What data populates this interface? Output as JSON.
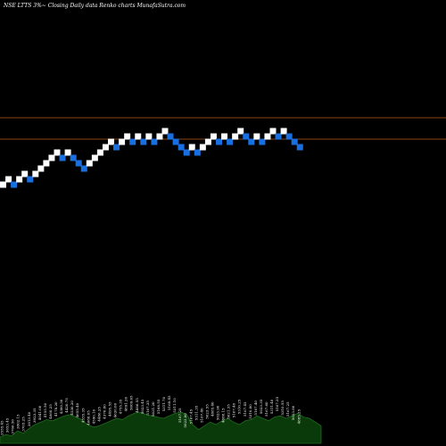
{
  "header": {
    "title": "NSE LTTS 3%~   Closing Daily data  Renko  charts MunafaSutra.com"
  },
  "colors": {
    "background": "#000000",
    "up_brick": "#ffffff",
    "down_brick": "#1a6fe0",
    "resistance_line": "#8b4513",
    "volume_fill": "#0a3a0a",
    "volume_stroke": "#1f6b1f"
  },
  "chart_data": {
    "type": "renko",
    "title": "NSE LTTS 3%~   Closing Daily data  Renko  charts MunafaSutra.com",
    "horizontal_lines": [
      "upper",
      "lower"
    ],
    "bricks": [
      {
        "level": 0,
        "dir": "up"
      },
      {
        "level": 1,
        "dir": "up"
      },
      {
        "level": 0,
        "dir": "down"
      },
      {
        "level": 1,
        "dir": "up"
      },
      {
        "level": 2,
        "dir": "up"
      },
      {
        "level": 1,
        "dir": "down"
      },
      {
        "level": 2,
        "dir": "up"
      },
      {
        "level": 3,
        "dir": "up"
      },
      {
        "level": 4,
        "dir": "up"
      },
      {
        "level": 5,
        "dir": "up"
      },
      {
        "level": 6,
        "dir": "up"
      },
      {
        "level": 5,
        "dir": "down"
      },
      {
        "level": 6,
        "dir": "up"
      },
      {
        "level": 5,
        "dir": "down"
      },
      {
        "level": 4,
        "dir": "down"
      },
      {
        "level": 3,
        "dir": "down"
      },
      {
        "level": 4,
        "dir": "up"
      },
      {
        "level": 5,
        "dir": "up"
      },
      {
        "level": 6,
        "dir": "up"
      },
      {
        "level": 7,
        "dir": "up"
      },
      {
        "level": 8,
        "dir": "up"
      },
      {
        "level": 7,
        "dir": "down"
      },
      {
        "level": 8,
        "dir": "up"
      },
      {
        "level": 9,
        "dir": "up"
      },
      {
        "level": 8,
        "dir": "down"
      },
      {
        "level": 9,
        "dir": "up"
      },
      {
        "level": 8,
        "dir": "down"
      },
      {
        "level": 9,
        "dir": "up"
      },
      {
        "level": 8,
        "dir": "down"
      },
      {
        "level": 9,
        "dir": "up"
      },
      {
        "level": 10,
        "dir": "up"
      },
      {
        "level": 9,
        "dir": "down"
      },
      {
        "level": 8,
        "dir": "down"
      },
      {
        "level": 7,
        "dir": "down"
      },
      {
        "level": 6,
        "dir": "down"
      },
      {
        "level": 7,
        "dir": "up"
      },
      {
        "level": 6,
        "dir": "down"
      },
      {
        "level": 7,
        "dir": "up"
      },
      {
        "level": 8,
        "dir": "up"
      },
      {
        "level": 9,
        "dir": "up"
      },
      {
        "level": 8,
        "dir": "down"
      },
      {
        "level": 9,
        "dir": "up"
      },
      {
        "level": 8,
        "dir": "down"
      },
      {
        "level": 9,
        "dir": "up"
      },
      {
        "level": 10,
        "dir": "up"
      },
      {
        "level": 9,
        "dir": "down"
      },
      {
        "level": 8,
        "dir": "down"
      },
      {
        "level": 9,
        "dir": "up"
      },
      {
        "level": 8,
        "dir": "down"
      },
      {
        "level": 9,
        "dir": "up"
      },
      {
        "level": 10,
        "dir": "up"
      },
      {
        "level": 9,
        "dir": "down"
      },
      {
        "level": 10,
        "dir": "up"
      },
      {
        "level": 9,
        "dir": "down"
      },
      {
        "level": 8,
        "dir": "down"
      },
      {
        "level": 7,
        "dir": "down"
      }
    ],
    "volume_labels": [
      "3555.45",
      "3653.45",
      "3706.50",
      "3802.15",
      "3705.25",
      "3813.40",
      "3923.35",
      "4041.00",
      "4155.50",
      "4060.25",
      "4178.20",
      "4300.30",
      "4420.75",
      "4530.20",
      "4655.40",
      "4555.35",
      "4688.05",
      "4590.10",
      "4486.25",
      "4370.80",
      "4495.55",
      "4620.00",
      "4755.35",
      "4891.20",
      "5009.65",
      "4886.55",
      "5023.45",
      "5167.35",
      "5031.20",
      "5168.55",
      "5311.70",
      "5168.45",
      "5311.10",
      "5167.25",
      "5023.80",
      "5167.45",
      "5311.35",
      "5167.40",
      "5023.55",
      "4885.40",
      "5023.90",
      "4888.15",
      "5021.35",
      "5167.40",
      "5310.25",
      "5167.45",
      "5310.80",
      "5167.40",
      "5023.35",
      "5167.60",
      "5311.40",
      "5167.35",
      "5310.55",
      "5167.25",
      "5023.80",
      "4885.25"
    ],
    "volume_profile": [
      0.1,
      0.14,
      0.12,
      0.2,
      0.16,
      0.24,
      0.3,
      0.34,
      0.38,
      0.36,
      0.4,
      0.44,
      0.46,
      0.42,
      0.38,
      0.3,
      0.26,
      0.28,
      0.32,
      0.36,
      0.4,
      0.38,
      0.44,
      0.48,
      0.5,
      0.46,
      0.44,
      0.42,
      0.4,
      0.44,
      0.48,
      0.5,
      0.46,
      0.3,
      0.22,
      0.28,
      0.34,
      0.3,
      0.36,
      0.4,
      0.34,
      0.3,
      0.36,
      0.38,
      0.44,
      0.4,
      0.36,
      0.42,
      0.44,
      0.4,
      0.44,
      0.48,
      0.42,
      0.4,
      0.34,
      0.28
    ]
  }
}
